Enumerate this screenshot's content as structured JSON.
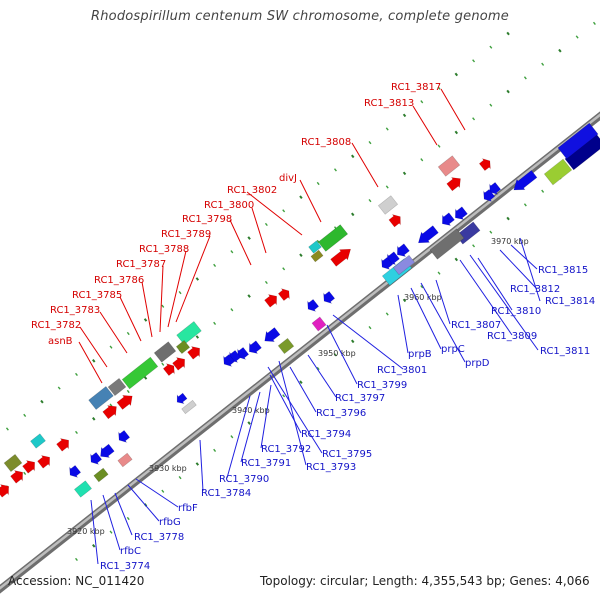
{
  "title": "Rhodospirillum centenum SW chromosome, complete genome",
  "footer": {
    "accession": "Accession: NC_011420",
    "summary": "Topology: circular; Length: 4,355,543 bp; Genes: 4,066"
  },
  "colors": {
    "forward_label": "#d40000",
    "reverse_label": "#1414c8",
    "backbone": "#8c8c8c",
    "tick": "#2d7d2d"
  },
  "kbp_labels": [
    "3920 kbp",
    "3930 kbp",
    "3940 kbp",
    "3950 kbp",
    "3960 kbp",
    "3970 kbp"
  ],
  "forward_labels": [
    "RC1_3817",
    "RC1_3813",
    "RC1_3808",
    "divJ",
    "RC1_3802",
    "RC1_3800",
    "RC1_3798",
    "RC1_3789",
    "RC1_3788",
    "RC1_3787",
    "RC1_3786",
    "RC1_3785",
    "RC1_3783",
    "RC1_3782",
    "asnB"
  ],
  "reverse_labels": [
    "RC1_3815",
    "RC1_3812",
    "RC1_3814",
    "RC1_3810",
    "RC1_3807",
    "RC1_3809",
    "RC1_3811",
    "prpD",
    "prpC",
    "prpB",
    "RC1_3801",
    "RC1_3799",
    "RC1_3797",
    "RC1_3796",
    "RC1_3794",
    "RC1_3795",
    "RC1_3793",
    "RC1_3792",
    "RC1_3791",
    "RC1_3790",
    "RC1_3784",
    "rfbF",
    "rfbG",
    "RC1_3778",
    "rfbC",
    "RC1_3774"
  ]
}
